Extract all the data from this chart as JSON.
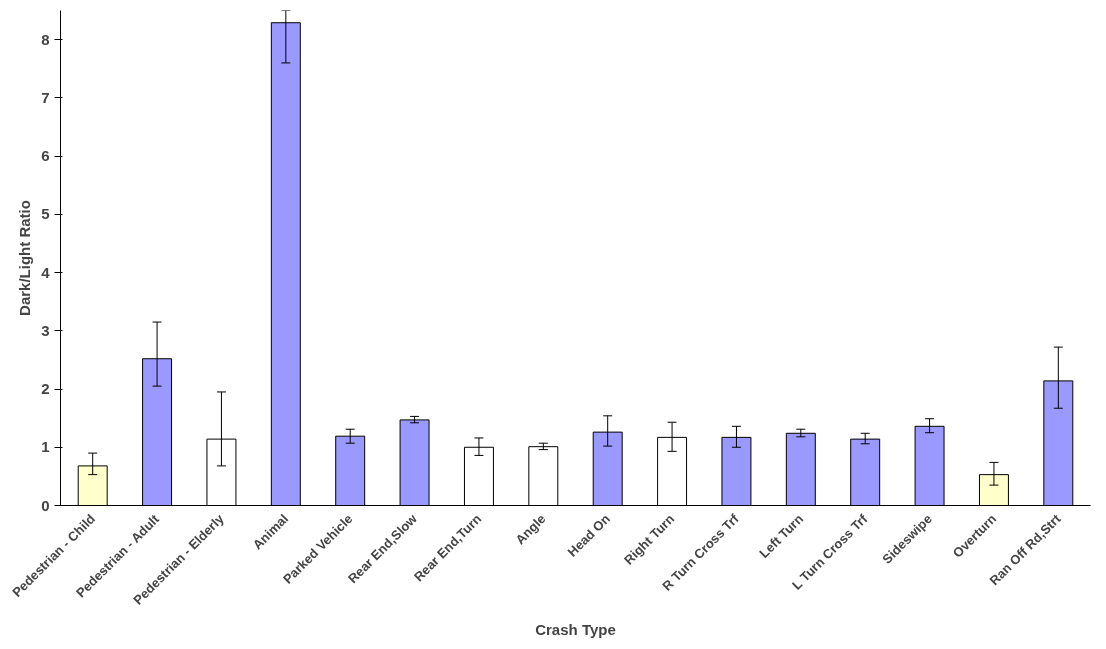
{
  "chart_data": {
    "type": "bar",
    "xlabel": "Crash Type",
    "ylabel": "Dark/Light Ratio",
    "categories": [
      "Pedestrian - Child",
      "Pedestrian - Adult",
      "Pedestrian - Elderly",
      "Animal",
      "Parked Vehicle",
      "Rear End,Slow",
      "Rear End,Turn",
      "Angle",
      "Head On",
      "Right Turn",
      "R Turn Cross Trf",
      "Left Turn",
      "L Turn Cross Trf",
      "Sideswipe",
      "Overturn",
      "Ran Off Rd,Strt"
    ],
    "values": [
      0.68,
      2.52,
      1.14,
      8.29,
      1.19,
      1.47,
      1.0,
      1.01,
      1.26,
      1.17,
      1.17,
      1.24,
      1.14,
      1.36,
      0.53,
      2.14
    ],
    "colors": [
      "#ffffcc",
      "#9999ff",
      "#ffffff",
      "#9999ff",
      "#9999ff",
      "#9999ff",
      "#ffffff",
      "#ffffff",
      "#9999ff",
      "#ffffff",
      "#9999ff",
      "#9999ff",
      "#9999ff",
      "#9999ff",
      "#ffffcc",
      "#9999ff"
    ],
    "errors": [
      [
        0.53,
        0.9
      ],
      [
        2.05,
        3.15
      ],
      [
        0.68,
        1.95
      ],
      [
        7.6,
        8.5
      ],
      [
        1.07,
        1.31
      ],
      [
        1.42,
        1.53
      ],
      [
        0.86,
        1.16
      ],
      [
        0.96,
        1.07
      ],
      [
        1.02,
        1.54
      ],
      [
        0.93,
        1.43
      ],
      [
        1.0,
        1.36
      ],
      [
        1.18,
        1.31
      ],
      [
        1.06,
        1.24
      ],
      [
        1.25,
        1.49
      ],
      [
        0.35,
        0.74
      ],
      [
        1.67,
        2.72
      ]
    ],
    "ylim": [
      0,
      8.5
    ],
    "yticks": [
      0,
      1,
      2,
      3,
      4,
      5,
      6,
      7,
      8
    ],
    "grid": false
  }
}
